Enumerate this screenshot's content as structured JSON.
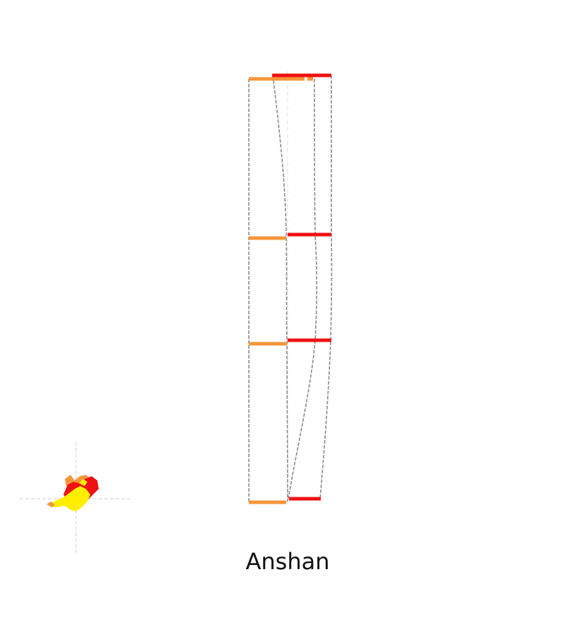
{
  "city": {
    "name": "Anshan"
  },
  "legend_colors": {
    "earlier": "#f5963a",
    "later": "#ee1111",
    "overlap": "#ffee00"
  },
  "connector_color": "#8a8a8a",
  "guide_color": "#cccccc",
  "layers": [
    {
      "id": "layer-1",
      "has_left_bar": true,
      "has_right_bar": true
    },
    {
      "id": "layer-2",
      "has_left_bar": true,
      "has_right_bar": true
    },
    {
      "id": "layer-3",
      "has_left_bar": true,
      "has_right_bar": true
    },
    {
      "id": "layer-4",
      "has_left_bar": true,
      "has_right_bar": true
    }
  ]
}
